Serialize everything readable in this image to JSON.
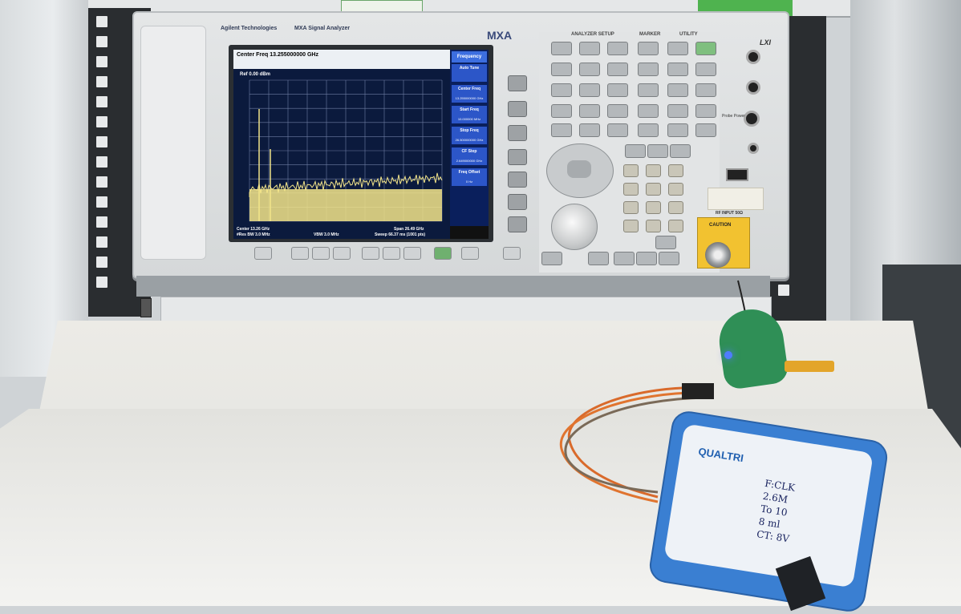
{
  "scene": {
    "description": "",
    "instrument": {
      "brand": "Agilent Technologies",
      "model": "MXA Signal Analyzer",
      "series_label": "MXA",
      "lxi_logo": "LXI",
      "section_labels": [
        "ANALYZER SETUP",
        "MARKER",
        "UTILITY"
      ],
      "probe_power_label": "Probe Power",
      "rf_input_label": "RF INPUT 50Ω",
      "caution_label": "CAUTION"
    },
    "screen": {
      "center_freq_header": "Center Freq 13.255000000 GHz",
      "ref_level": "Ref 0.00 dBm",
      "scale": "10 dB/div",
      "softkey_title": "Frequency",
      "softkeys": [
        {
          "label": "Auto Tune",
          "sub": ""
        },
        {
          "label": "Center Freq",
          "sub": "13.255000000 GHz"
        },
        {
          "label": "Start Freq",
          "sub": "10.000000 MHz"
        },
        {
          "label": "Stop Freq",
          "sub": "26.500000000 GHz"
        },
        {
          "label": "CF Step",
          "sub": "2.649000000 GHz"
        },
        {
          "label": "Freq Offset",
          "sub": "0 Hz"
        }
      ],
      "footer": {
        "center": "Center 13.26 GHz",
        "res_bw": "#Res BW 3.0 MHz",
        "vbw": "VBW 3.0 MHz",
        "span": "Span 26.49 GHz",
        "sweep": "Sweep  66.37 ms (1001 pts)"
      },
      "trace_color": "#f3e58a",
      "grid_color": "#6f7da3",
      "background_color": "#0b1a3d"
    },
    "analyzer_box": {
      "brand": "QUALTRI",
      "handwritten_note": [
        "F:CLK",
        "2.6M",
        "To 10",
        "8 ml",
        "CT: 8V"
      ]
    },
    "dut_board_led_color": "#4f7cff"
  }
}
